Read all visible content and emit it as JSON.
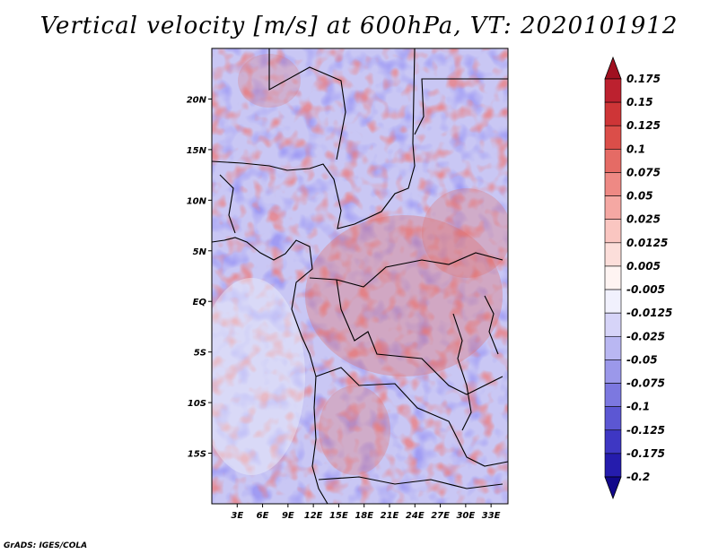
{
  "title": "Vertical velocity [m/s] at 600hPa, VT: 2020101912",
  "footer": "GrADS: IGES/COLA",
  "map": {
    "lon_range": [
      0,
      35
    ],
    "lat_range": [
      -20,
      25
    ],
    "lat_ticks": [
      {
        "value": 20,
        "label": "20N"
      },
      {
        "value": 15,
        "label": "15N"
      },
      {
        "value": 10,
        "label": "10N"
      },
      {
        "value": 5,
        "label": "5N"
      },
      {
        "value": 0,
        "label": "EQ"
      },
      {
        "value": -5,
        "label": "5S"
      },
      {
        "value": -10,
        "label": "10S"
      },
      {
        "value": -15,
        "label": "15S"
      }
    ],
    "lon_ticks": [
      {
        "value": 3,
        "label": "3E"
      },
      {
        "value": 6,
        "label": "6E"
      },
      {
        "value": 9,
        "label": "9E"
      },
      {
        "value": 12,
        "label": "12E"
      },
      {
        "value": 15,
        "label": "15E"
      },
      {
        "value": 18,
        "label": "18E"
      },
      {
        "value": 21,
        "label": "21E"
      },
      {
        "value": 24,
        "label": "24E"
      },
      {
        "value": 27,
        "label": "27E"
      },
      {
        "value": 30,
        "label": "30E"
      },
      {
        "value": 33,
        "label": "33E"
      }
    ]
  },
  "colorbar": {
    "levels": [
      {
        "label": "0.175",
        "color": "#b2182b"
      },
      {
        "label": "0.15",
        "color": "#c52a32"
      },
      {
        "label": "0.125",
        "color": "#d6403c"
      },
      {
        "label": "0.1",
        "color": "#e05b56"
      },
      {
        "label": "0.075",
        "color": "#e97a74"
      },
      {
        "label": "0.05",
        "color": "#f29893"
      },
      {
        "label": "0.025",
        "color": "#f8b8b3"
      },
      {
        "label": "0.0125",
        "color": "#fbd3cf"
      },
      {
        "label": "0.005",
        "color": "#fde8e5"
      },
      {
        "label": "-0.005",
        "color": "#ffffff"
      },
      {
        "label": "-0.0125",
        "color": "#e3e2fb"
      },
      {
        "label": "-0.025",
        "color": "#c8c6f5"
      },
      {
        "label": "-0.05",
        "color": "#aaa7ee"
      },
      {
        "label": "-0.075",
        "color": "#8c88e5"
      },
      {
        "label": "-0.1",
        "color": "#6c67da"
      },
      {
        "label": "-0.125",
        "color": "#4c46cc"
      },
      {
        "label": "-0.175",
        "color": "#2f28b9"
      },
      {
        "label": "-0.2",
        "color": "#1a10a0"
      }
    ],
    "over_color": "#a01020",
    "under_color": "#12088a"
  }
}
